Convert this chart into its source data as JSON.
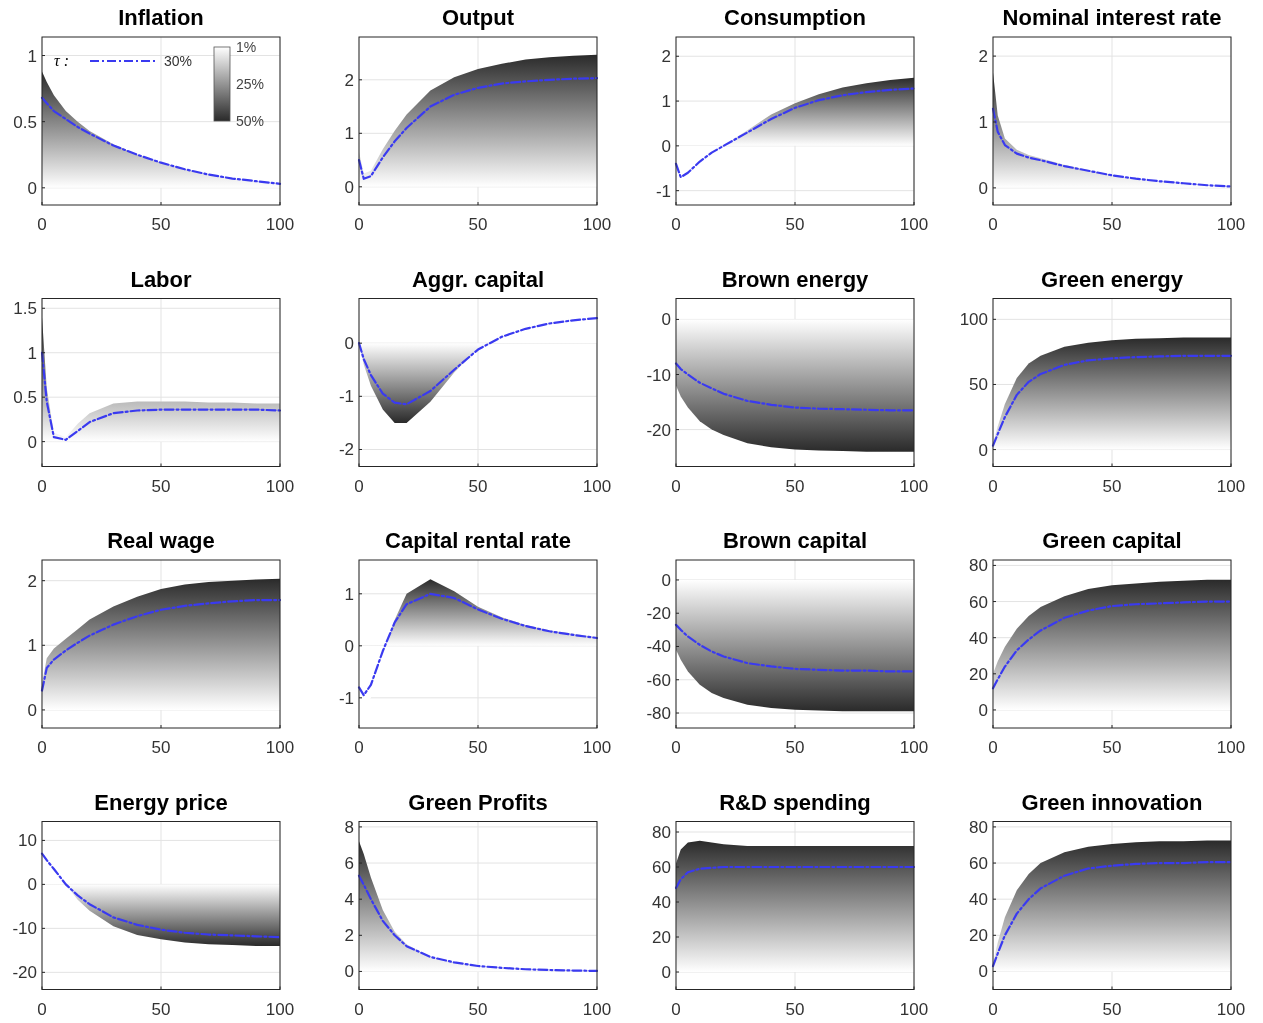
{
  "chart_data": [
    {
      "type": "line",
      "title": "Inflation",
      "x": [
        0,
        2,
        5,
        10,
        15,
        20,
        30,
        40,
        50,
        60,
        70,
        80,
        90,
        100
      ],
      "xlim": [
        0,
        100
      ],
      "xticks": [
        0,
        50,
        100
      ],
      "ylim": [
        -0.13,
        1.14
      ],
      "yticks": [
        0,
        0.5,
        1
      ],
      "grid": true,
      "legend": "top",
      "legend_title": "τ :",
      "annotations": [
        "1%",
        "25%",
        "50%"
      ],
      "series": [
        {
          "type": "area",
          "color": "#2a2a2a",
          "values": [
            0.88,
            0.8,
            0.7,
            0.58,
            0.5,
            0.43,
            0.33,
            0.25,
            0.19,
            0.14,
            0.1,
            0.07,
            0.05,
            0.03
          ]
        },
        {
          "name": "30%",
          "color": "#3a3af0",
          "line_style": "dashed",
          "values": [
            0.68,
            0.64,
            0.58,
            0.52,
            0.46,
            0.41,
            0.32,
            0.25,
            0.19,
            0.14,
            0.1,
            0.07,
            0.05,
            0.03
          ]
        }
      ]
    },
    {
      "type": "line",
      "title": "Output",
      "x": [
        0,
        2,
        5,
        10,
        15,
        20,
        30,
        40,
        50,
        60,
        70,
        80,
        90,
        100
      ],
      "xlim": [
        0,
        100
      ],
      "xticks": [
        0,
        50,
        100
      ],
      "ylim": [
        -0.34,
        2.8
      ],
      "yticks": [
        0,
        1,
        2
      ],
      "grid": true,
      "series": [
        {
          "type": "area",
          "color": "#2a2a2a",
          "values": [
            0.65,
            0.25,
            0.3,
            0.7,
            1.05,
            1.35,
            1.8,
            2.05,
            2.2,
            2.3,
            2.38,
            2.42,
            2.45,
            2.47
          ]
        },
        {
          "color": "#3a3af0",
          "line_style": "dashed",
          "values": [
            0.5,
            0.15,
            0.2,
            0.55,
            0.85,
            1.1,
            1.5,
            1.72,
            1.85,
            1.93,
            1.97,
            2.0,
            2.02,
            2.03
          ]
        }
      ]
    },
    {
      "type": "line",
      "title": "Consumption",
      "x": [
        0,
        2,
        5,
        10,
        15,
        20,
        30,
        40,
        50,
        60,
        70,
        80,
        90,
        100
      ],
      "xlim": [
        0,
        100
      ],
      "xticks": [
        0,
        50,
        100
      ],
      "ylim": [
        -1.32,
        2.43
      ],
      "yticks": [
        -1,
        0,
        1,
        2
      ],
      "grid": true,
      "series": [
        {
          "type": "area",
          "color": "#2a2a2a",
          "values": [
            -0.5,
            -0.9,
            -0.8,
            -0.45,
            -0.2,
            0,
            0.35,
            0.7,
            0.95,
            1.15,
            1.3,
            1.4,
            1.47,
            1.52
          ]
        },
        {
          "color": "#3a3af0",
          "line_style": "dashed",
          "values": [
            -0.4,
            -0.7,
            -0.6,
            -0.35,
            -0.15,
            0,
            0.3,
            0.6,
            0.85,
            1.02,
            1.13,
            1.2,
            1.25,
            1.28
          ]
        }
      ]
    },
    {
      "type": "line",
      "title": "Nominal interest rate",
      "x": [
        0,
        2,
        5,
        10,
        15,
        20,
        30,
        40,
        50,
        60,
        70,
        80,
        90,
        100
      ],
      "xlim": [
        0,
        100
      ],
      "xticks": [
        0,
        50,
        100
      ],
      "ylim": [
        -0.26,
        2.29
      ],
      "yticks": [
        0,
        1,
        2
      ],
      "grid": true,
      "series": [
        {
          "type": "area",
          "color": "#2a2a2a",
          "values": [
            1.75,
            1.1,
            0.75,
            0.58,
            0.5,
            0.45,
            0.35,
            0.27,
            0.2,
            0.14,
            0.1,
            0.07,
            0.04,
            0.02
          ]
        },
        {
          "color": "#3a3af0",
          "line_style": "dashed",
          "values": [
            1.2,
            0.85,
            0.65,
            0.52,
            0.46,
            0.42,
            0.33,
            0.26,
            0.19,
            0.14,
            0.1,
            0.07,
            0.04,
            0.02
          ]
        }
      ]
    },
    {
      "type": "line",
      "title": "Labor",
      "x": [
        0,
        2,
        5,
        10,
        15,
        20,
        30,
        40,
        50,
        60,
        70,
        80,
        90,
        100
      ],
      "xlim": [
        0,
        100
      ],
      "xticks": [
        0,
        50,
        100
      ],
      "ylim": [
        -0.28,
        1.61
      ],
      "yticks": [
        0,
        0.5,
        1,
        1.5
      ],
      "grid": true,
      "series": [
        {
          "type": "area",
          "color": "#2a2a2a",
          "values": [
            1.4,
            0.6,
            0.1,
            0.05,
            0.2,
            0.32,
            0.43,
            0.45,
            0.45,
            0.45,
            0.44,
            0.44,
            0.43,
            0.43
          ]
        },
        {
          "color": "#3a3af0",
          "line_style": "dashed",
          "values": [
            1.0,
            0.45,
            0.05,
            0.02,
            0.12,
            0.22,
            0.32,
            0.35,
            0.36,
            0.36,
            0.36,
            0.36,
            0.36,
            0.35
          ]
        }
      ]
    },
    {
      "type": "line",
      "title": "Aggr. capital",
      "x": [
        0,
        2,
        5,
        10,
        15,
        20,
        30,
        40,
        50,
        60,
        70,
        80,
        90,
        100
      ],
      "xlim": [
        0,
        100
      ],
      "xticks": [
        0,
        50,
        100
      ],
      "ylim": [
        -2.32,
        0.84
      ],
      "yticks": [
        -2,
        -1,
        0
      ],
      "grid": true,
      "series": [
        {
          "type": "area",
          "color": "#2a2a2a",
          "values": [
            0,
            -0.4,
            -0.8,
            -1.25,
            -1.5,
            -1.5,
            -1.1,
            -0.55,
            -0.1,
            0.15,
            0.3,
            0.4,
            0.45,
            0.48
          ]
        },
        {
          "color": "#3a3af0",
          "line_style": "dashed",
          "values": [
            0,
            -0.3,
            -0.6,
            -0.95,
            -1.12,
            -1.15,
            -0.9,
            -0.5,
            -0.12,
            0.12,
            0.27,
            0.37,
            0.43,
            0.47
          ]
        }
      ]
    },
    {
      "type": "line",
      "title": "Brown energy",
      "x": [
        0,
        2,
        5,
        10,
        15,
        20,
        30,
        40,
        50,
        60,
        70,
        80,
        90,
        100
      ],
      "xlim": [
        0,
        100
      ],
      "xticks": [
        0,
        50,
        100
      ],
      "ylim": [
        -26.7,
        3.8
      ],
      "yticks": [
        -20,
        -10,
        0
      ],
      "grid": true,
      "series": [
        {
          "type": "area",
          "color": "#2a2a2a",
          "values": [
            -12,
            -14,
            -16,
            -18.5,
            -20,
            -21,
            -22.5,
            -23.2,
            -23.6,
            -23.8,
            -23.9,
            -24,
            -24,
            -24
          ]
        },
        {
          "color": "#3a3af0",
          "line_style": "dashed",
          "values": [
            -8,
            -9,
            -10,
            -11.5,
            -12.5,
            -13.5,
            -14.8,
            -15.5,
            -16,
            -16.2,
            -16.3,
            -16.4,
            -16.5,
            -16.5
          ]
        }
      ]
    },
    {
      "type": "line",
      "title": "Green energy",
      "x": [
        0,
        2,
        5,
        10,
        15,
        20,
        30,
        40,
        50,
        60,
        70,
        80,
        90,
        100
      ],
      "xlim": [
        0,
        100
      ],
      "xticks": [
        0,
        50,
        100
      ],
      "ylim": [
        -13,
        116
      ],
      "yticks": [
        0,
        50,
        100
      ],
      "grid": true,
      "series": [
        {
          "type": "area",
          "color": "#2a2a2a",
          "values": [
            5,
            18,
            35,
            55,
            66,
            72,
            79,
            82,
            84,
            85,
            85.5,
            86,
            86,
            86
          ]
        },
        {
          "color": "#3a3af0",
          "line_style": "dashed",
          "values": [
            3,
            12,
            25,
            42,
            52,
            58,
            65,
            68.5,
            70,
            71,
            71.5,
            72,
            72,
            72
          ]
        }
      ]
    },
    {
      "type": "line",
      "title": "Real wage",
      "x": [
        0,
        2,
        5,
        10,
        15,
        20,
        30,
        40,
        50,
        60,
        70,
        80,
        90,
        100
      ],
      "xlim": [
        0,
        100
      ],
      "xticks": [
        0,
        50,
        100
      ],
      "ylim": [
        -0.28,
        2.32
      ],
      "yticks": [
        0,
        1,
        2
      ],
      "grid": true,
      "series": [
        {
          "type": "area",
          "color": "#2a2a2a",
          "values": [
            0.4,
            0.8,
            0.95,
            1.1,
            1.25,
            1.4,
            1.6,
            1.75,
            1.87,
            1.94,
            1.98,
            2.0,
            2.02,
            2.03
          ]
        },
        {
          "color": "#3a3af0",
          "line_style": "dashed",
          "values": [
            0.3,
            0.65,
            0.78,
            0.92,
            1.04,
            1.15,
            1.32,
            1.45,
            1.55,
            1.61,
            1.65,
            1.68,
            1.7,
            1.7
          ]
        }
      ]
    },
    {
      "type": "line",
      "title": "Capital rental rate",
      "x": [
        0,
        2,
        5,
        10,
        15,
        20,
        30,
        40,
        50,
        60,
        70,
        80,
        90,
        100
      ],
      "xlim": [
        0,
        100
      ],
      "xticks": [
        0,
        50,
        100
      ],
      "ylim": [
        -1.58,
        1.65
      ],
      "yticks": [
        -1,
        0,
        1
      ],
      "grid": true,
      "series": [
        {
          "type": "area",
          "color": "#2a2a2a",
          "values": [
            -0.8,
            -1.2,
            -1.0,
            -0.2,
            0.5,
            1.0,
            1.28,
            1.05,
            0.75,
            0.55,
            0.4,
            0.3,
            0.23,
            0.17
          ]
        },
        {
          "color": "#3a3af0",
          "line_style": "dashed",
          "values": [
            -0.8,
            -0.95,
            -0.75,
            -0.1,
            0.45,
            0.8,
            1.0,
            0.92,
            0.7,
            0.52,
            0.38,
            0.28,
            0.21,
            0.15
          ]
        }
      ]
    },
    {
      "type": "line",
      "title": "Brown capital",
      "x": [
        0,
        2,
        5,
        10,
        15,
        20,
        30,
        40,
        50,
        60,
        70,
        80,
        90,
        100
      ],
      "xlim": [
        0,
        100
      ],
      "xticks": [
        0,
        50,
        100
      ],
      "ylim": [
        -89,
        12
      ],
      "yticks": [
        -80,
        -60,
        -40,
        -20,
        0
      ],
      "grid": true,
      "series": [
        {
          "type": "area",
          "color": "#2a2a2a",
          "values": [
            -42,
            -48,
            -55,
            -63,
            -68,
            -71,
            -75,
            -77,
            -78,
            -78.5,
            -79,
            -79,
            -79,
            -79
          ]
        },
        {
          "color": "#3a3af0",
          "line_style": "dashed",
          "values": [
            -27,
            -30,
            -34,
            -39,
            -43,
            -46,
            -50,
            -52,
            -53.5,
            -54,
            -54.5,
            -54.5,
            -55,
            -55
          ]
        }
      ]
    },
    {
      "type": "line",
      "title": "Green capital",
      "x": [
        0,
        2,
        5,
        10,
        15,
        20,
        30,
        40,
        50,
        60,
        70,
        80,
        90,
        100
      ],
      "xlim": [
        0,
        100
      ],
      "xticks": [
        0,
        50,
        100
      ],
      "ylim": [
        -10,
        83
      ],
      "yticks": [
        0,
        20,
        40,
        60,
        80
      ],
      "grid": true,
      "series": [
        {
          "type": "area",
          "color": "#2a2a2a",
          "values": [
            20,
            27,
            35,
            45,
            52,
            57,
            63,
            67,
            69,
            70,
            71,
            71.5,
            72,
            72
          ]
        },
        {
          "color": "#3a3af0",
          "line_style": "dashed",
          "values": [
            12,
            17,
            24,
            33,
            39,
            44,
            51,
            55,
            57.5,
            58.5,
            59,
            59.5,
            60,
            60
          ]
        }
      ]
    },
    {
      "type": "line",
      "title": "Energy price",
      "x": [
        0,
        2,
        5,
        10,
        15,
        20,
        30,
        40,
        50,
        60,
        70,
        80,
        90,
        100
      ],
      "xlim": [
        0,
        100
      ],
      "xticks": [
        0,
        50,
        100
      ],
      "ylim": [
        -23.9,
        14.3
      ],
      "yticks": [
        -20,
        -10,
        0,
        10
      ],
      "grid": true,
      "series": [
        {
          "type": "area",
          "color": "#2a2a2a",
          "values": [
            10,
            7,
            4,
            0,
            -3.5,
            -6,
            -9.5,
            -11.5,
            -12.5,
            -13.2,
            -13.6,
            -13.8,
            -14,
            -14
          ]
        },
        {
          "color": "#3a3af0",
          "line_style": "dashed",
          "values": [
            7,
            5.5,
            3.5,
            0,
            -2.5,
            -4.5,
            -7.5,
            -9.2,
            -10.3,
            -11,
            -11.4,
            -11.6,
            -11.8,
            -12
          ]
        }
      ]
    },
    {
      "type": "line",
      "title": "Green Profits",
      "x": [
        0,
        2,
        5,
        10,
        15,
        20,
        30,
        40,
        50,
        60,
        70,
        80,
        90,
        100
      ],
      "xlim": [
        0,
        100
      ],
      "xticks": [
        0,
        50,
        100
      ],
      "ylim": [
        -1,
        8.3
      ],
      "yticks": [
        0,
        2,
        4,
        6,
        8
      ],
      "grid": true,
      "series": [
        {
          "type": "area",
          "color": "#2a2a2a",
          "values": [
            7.2,
            6.5,
            5.2,
            3.4,
            2.2,
            1.5,
            0.8,
            0.5,
            0.3,
            0.2,
            0.12,
            0.08,
            0.05,
            0.03
          ]
        },
        {
          "color": "#3a3af0",
          "line_style": "dashed",
          "values": [
            5.3,
            4.8,
            4.0,
            2.8,
            2.0,
            1.4,
            0.8,
            0.5,
            0.3,
            0.2,
            0.12,
            0.08,
            0.05,
            0.03
          ]
        }
      ]
    },
    {
      "type": "line",
      "title": "R&D spending",
      "x": [
        0,
        2,
        5,
        10,
        15,
        20,
        30,
        40,
        50,
        60,
        70,
        80,
        90,
        100
      ],
      "xlim": [
        0,
        100
      ],
      "xticks": [
        0,
        50,
        100
      ],
      "ylim": [
        -10,
        86
      ],
      "yticks": [
        0,
        20,
        40,
        60,
        80
      ],
      "grid": true,
      "series": [
        {
          "type": "area",
          "color": "#2a2a2a",
          "values": [
            62,
            70,
            74,
            75,
            74,
            73,
            72,
            72,
            72,
            72,
            72,
            72,
            72,
            72
          ]
        },
        {
          "color": "#3a3af0",
          "line_style": "dashed",
          "values": [
            48,
            53,
            57,
            59,
            59.5,
            60,
            60,
            60,
            60,
            60,
            60,
            60,
            60,
            60
          ]
        }
      ]
    },
    {
      "type": "line",
      "title": "Green innovation",
      "x": [
        0,
        2,
        5,
        10,
        15,
        20,
        30,
        40,
        50,
        60,
        70,
        80,
        90,
        100
      ],
      "xlim": [
        0,
        100
      ],
      "xticks": [
        0,
        50,
        100
      ],
      "ylim": [
        -10,
        83
      ],
      "yticks": [
        0,
        20,
        40,
        60,
        80
      ],
      "grid": true,
      "series": [
        {
          "type": "area",
          "color": "#2a2a2a",
          "values": [
            5,
            16,
            30,
            45,
            54,
            60,
            66,
            69,
            70.5,
            71.5,
            72,
            72,
            72.5,
            72.5
          ]
        },
        {
          "color": "#3a3af0",
          "line_style": "dashed",
          "values": [
            3,
            10,
            20,
            32,
            40,
            46,
            53,
            57,
            58.5,
            59.5,
            60,
            60,
            60.5,
            60.5
          ]
        }
      ]
    }
  ]
}
